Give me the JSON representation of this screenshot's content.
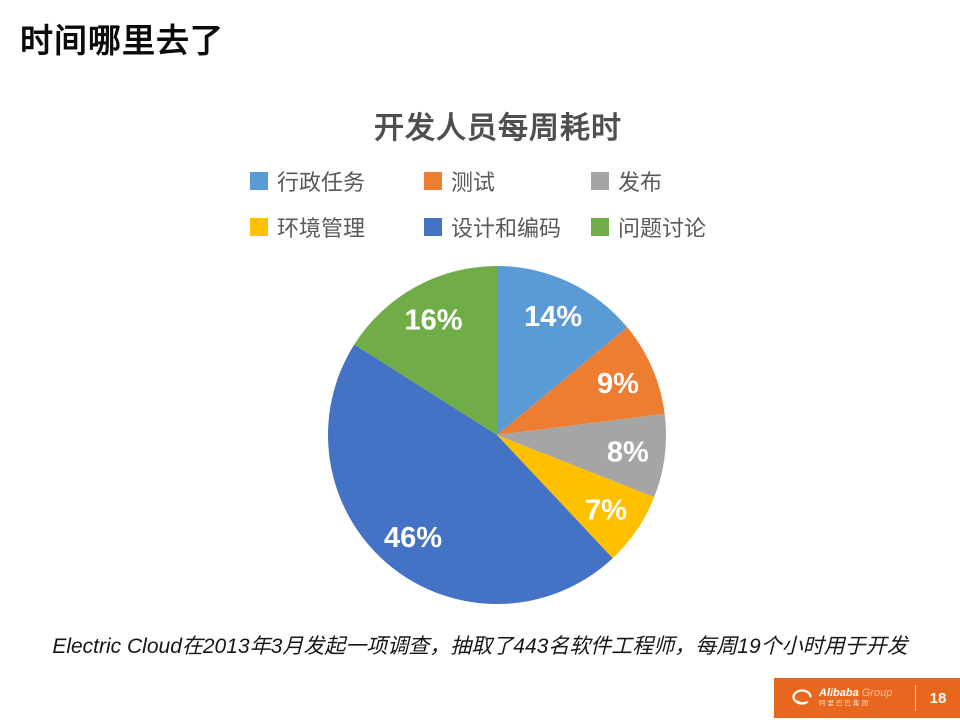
{
  "slide": {
    "title": "时间哪里去了",
    "caption": "Electric Cloud在2013年3月发起一项调查，抽取了443名软件工程师，每周19个小时用于开发",
    "page_number": "18"
  },
  "footer": {
    "bar_color": "#E8671E",
    "brand_name": "Alibaba",
    "brand_suffix": "Group",
    "brand_subtitle": "阿里巴巴集团"
  },
  "chart_data": {
    "type": "pie",
    "title": "开发人员每周耗时",
    "categories": [
      "行政任务",
      "测试",
      "发布",
      "环境管理",
      "设计和编码",
      "问题讨论"
    ],
    "values": [
      14,
      9,
      8,
      7,
      46,
      16
    ],
    "labels": [
      "14%",
      "9%",
      "8%",
      "7%",
      "46%",
      "16%"
    ],
    "colors": [
      "#5B9BD5",
      "#ED7D31",
      "#A5A5A5",
      "#FFC000",
      "#4472C4",
      "#70AD47"
    ],
    "start_angle_deg": 0,
    "direction": "clockwise",
    "legend_position": "top",
    "legend_rows": [
      [
        "行政任务",
        "测试",
        "发布"
      ],
      [
        "环境管理",
        "设计和编码",
        "问题讨论"
      ]
    ]
  }
}
